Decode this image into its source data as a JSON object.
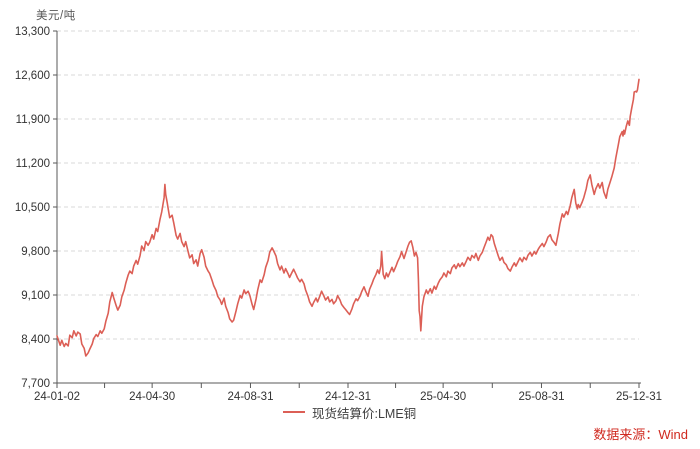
{
  "chart": {
    "unit_label": "美元/吨",
    "legend_label": "现货结算价:LME铜",
    "source_text": "数据来源：Wind"
  },
  "chart_data": {
    "type": "line",
    "title": "",
    "ylabel": "美元/吨",
    "xlabel": "",
    "ylim": [
      7700,
      13300
    ],
    "y_tick_step": 700,
    "y_tick_labels": [
      "7,700",
      "8,400",
      "9,100",
      "9,800",
      "10,500",
      "11,200",
      "11,900",
      "12,600",
      "13,300"
    ],
    "grid": "horizontal-dashed",
    "legend_position": "bottom-center",
    "x_unit": "days since 2024-01-02",
    "x_ticks": [
      {
        "day": 0,
        "label": "24-01-02"
      },
      {
        "day": 119,
        "label": "24-04-30"
      },
      {
        "day": 242,
        "label": "24-08-31"
      },
      {
        "day": 364,
        "label": "24-12-31"
      },
      {
        "day": 483,
        "label": "25-04-30"
      },
      {
        "day": 606,
        "label": "25-08-31"
      },
      {
        "day": 728,
        "label": "25-12-31"
      }
    ],
    "colors": {
      "line": "#dc5f56",
      "axis": "#595959",
      "grid": "#d9d9d9",
      "tick_label": "#333333",
      "source_text": "#d02a20"
    },
    "series": [
      {
        "name": "现货结算价:LME铜",
        "color": "#dc5f56",
        "points": [
          [
            0,
            8450
          ],
          [
            4,
            8300
          ],
          [
            6,
            8380
          ],
          [
            9,
            8280
          ],
          [
            11,
            8330
          ],
          [
            14,
            8290
          ],
          [
            16,
            8460
          ],
          [
            19,
            8420
          ],
          [
            21,
            8530
          ],
          [
            24,
            8450
          ],
          [
            26,
            8510
          ],
          [
            29,
            8480
          ],
          [
            31,
            8320
          ],
          [
            34,
            8250
          ],
          [
            36,
            8130
          ],
          [
            39,
            8180
          ],
          [
            41,
            8240
          ],
          [
            44,
            8320
          ],
          [
            46,
            8410
          ],
          [
            49,
            8470
          ],
          [
            51,
            8440
          ],
          [
            54,
            8530
          ],
          [
            56,
            8490
          ],
          [
            59,
            8560
          ],
          [
            61,
            8680
          ],
          [
            64,
            8810
          ],
          [
            66,
            8990
          ],
          [
            69,
            9140
          ],
          [
            71,
            9050
          ],
          [
            74,
            8930
          ],
          [
            76,
            8860
          ],
          [
            79,
            8940
          ],
          [
            81,
            9070
          ],
          [
            84,
            9180
          ],
          [
            86,
            9290
          ],
          [
            89,
            9420
          ],
          [
            91,
            9480
          ],
          [
            94,
            9440
          ],
          [
            96,
            9560
          ],
          [
            99,
            9650
          ],
          [
            101,
            9590
          ],
          [
            104,
            9730
          ],
          [
            106,
            9880
          ],
          [
            109,
            9810
          ],
          [
            111,
            9950
          ],
          [
            114,
            9890
          ],
          [
            116,
            9940
          ],
          [
            119,
            10060
          ],
          [
            121,
            9990
          ],
          [
            124,
            10160
          ],
          [
            126,
            10110
          ],
          [
            129,
            10310
          ],
          [
            131,
            10420
          ],
          [
            134,
            10650
          ],
          [
            135,
            10860
          ],
          [
            136,
            10700
          ],
          [
            138,
            10560
          ],
          [
            139,
            10480
          ],
          [
            141,
            10330
          ],
          [
            144,
            10370
          ],
          [
            146,
            10250
          ],
          [
            149,
            10050
          ],
          [
            151,
            9990
          ],
          [
            154,
            10080
          ],
          [
            156,
            9950
          ],
          [
            159,
            9870
          ],
          [
            161,
            9950
          ],
          [
            164,
            9790
          ],
          [
            166,
            9690
          ],
          [
            169,
            9740
          ],
          [
            171,
            9600
          ],
          [
            174,
            9660
          ],
          [
            176,
            9560
          ],
          [
            179,
            9760
          ],
          [
            181,
            9820
          ],
          [
            184,
            9700
          ],
          [
            186,
            9560
          ],
          [
            189,
            9480
          ],
          [
            191,
            9440
          ],
          [
            194,
            9330
          ],
          [
            196,
            9250
          ],
          [
            199,
            9170
          ],
          [
            201,
            9080
          ],
          [
            204,
            9020
          ],
          [
            206,
            8950
          ],
          [
            209,
            9050
          ],
          [
            211,
            8920
          ],
          [
            214,
            8820
          ],
          [
            216,
            8720
          ],
          [
            219,
            8670
          ],
          [
            221,
            8700
          ],
          [
            224,
            8850
          ],
          [
            226,
            8960
          ],
          [
            229,
            9090
          ],
          [
            231,
            9050
          ],
          [
            234,
            9180
          ],
          [
            236,
            9120
          ],
          [
            239,
            9160
          ],
          [
            241,
            9100
          ],
          [
            244,
            8950
          ],
          [
            246,
            8870
          ],
          [
            249,
            9040
          ],
          [
            251,
            9180
          ],
          [
            254,
            9340
          ],
          [
            256,
            9300
          ],
          [
            259,
            9420
          ],
          [
            261,
            9540
          ],
          [
            264,
            9650
          ],
          [
            266,
            9780
          ],
          [
            269,
            9850
          ],
          [
            271,
            9800
          ],
          [
            274,
            9720
          ],
          [
            276,
            9600
          ],
          [
            279,
            9500
          ],
          [
            281,
            9560
          ],
          [
            284,
            9450
          ],
          [
            286,
            9520
          ],
          [
            289,
            9440
          ],
          [
            291,
            9380
          ],
          [
            294,
            9460
          ],
          [
            296,
            9510
          ],
          [
            299,
            9430
          ],
          [
            301,
            9370
          ],
          [
            304,
            9310
          ],
          [
            306,
            9350
          ],
          [
            309,
            9280
          ],
          [
            311,
            9180
          ],
          [
            314,
            9080
          ],
          [
            316,
            8990
          ],
          [
            319,
            8920
          ],
          [
            321,
            8980
          ],
          [
            324,
            9050
          ],
          [
            326,
            8990
          ],
          [
            329,
            9090
          ],
          [
            331,
            9160
          ],
          [
            334,
            9080
          ],
          [
            336,
            9020
          ],
          [
            339,
            9070
          ],
          [
            341,
            8990
          ],
          [
            344,
            9030
          ],
          [
            346,
            8960
          ],
          [
            349,
            9010
          ],
          [
            351,
            9090
          ],
          [
            354,
            9020
          ],
          [
            356,
            8950
          ],
          [
            359,
            8900
          ],
          [
            361,
            8870
          ],
          [
            364,
            8820
          ],
          [
            366,
            8790
          ],
          [
            369,
            8880
          ],
          [
            371,
            8960
          ],
          [
            374,
            9040
          ],
          [
            376,
            9010
          ],
          [
            379,
            9080
          ],
          [
            381,
            9150
          ],
          [
            384,
            9230
          ],
          [
            386,
            9160
          ],
          [
            389,
            9080
          ],
          [
            391,
            9190
          ],
          [
            394,
            9280
          ],
          [
            396,
            9350
          ],
          [
            399,
            9430
          ],
          [
            401,
            9500
          ],
          [
            403,
            9440
          ],
          [
            405,
            9560
          ],
          [
            406,
            9790
          ],
          [
            408,
            9430
          ],
          [
            410,
            9360
          ],
          [
            412,
            9450
          ],
          [
            414,
            9390
          ],
          [
            417,
            9480
          ],
          [
            419,
            9540
          ],
          [
            421,
            9470
          ],
          [
            424,
            9560
          ],
          [
            426,
            9630
          ],
          [
            429,
            9710
          ],
          [
            431,
            9790
          ],
          [
            434,
            9680
          ],
          [
            436,
            9760
          ],
          [
            439,
            9880
          ],
          [
            441,
            9940
          ],
          [
            443,
            9960
          ],
          [
            445,
            9860
          ],
          [
            447,
            9720
          ],
          [
            449,
            9780
          ],
          [
            451,
            9690
          ],
          [
            452,
            9350
          ],
          [
            453,
            8850
          ],
          [
            454,
            8760
          ],
          [
            455,
            8530
          ],
          [
            457,
            8920
          ],
          [
            459,
            9070
          ],
          [
            462,
            9180
          ],
          [
            464,
            9120
          ],
          [
            467,
            9200
          ],
          [
            469,
            9130
          ],
          [
            472,
            9240
          ],
          [
            474,
            9190
          ],
          [
            477,
            9290
          ],
          [
            479,
            9340
          ],
          [
            482,
            9390
          ],
          [
            484,
            9450
          ],
          [
            487,
            9390
          ],
          [
            489,
            9480
          ],
          [
            492,
            9440
          ],
          [
            494,
            9530
          ],
          [
            497,
            9580
          ],
          [
            499,
            9520
          ],
          [
            502,
            9600
          ],
          [
            504,
            9550
          ],
          [
            507,
            9610
          ],
          [
            509,
            9560
          ],
          [
            512,
            9640
          ],
          [
            514,
            9700
          ],
          [
            517,
            9650
          ],
          [
            519,
            9730
          ],
          [
            522,
            9690
          ],
          [
            524,
            9760
          ],
          [
            527,
            9650
          ],
          [
            529,
            9720
          ],
          [
            532,
            9780
          ],
          [
            534,
            9850
          ],
          [
            537,
            9950
          ],
          [
            539,
            10020
          ],
          [
            541,
            9970
          ],
          [
            543,
            10060
          ],
          [
            545,
            10030
          ],
          [
            547,
            9920
          ],
          [
            549,
            9840
          ],
          [
            552,
            9720
          ],
          [
            554,
            9650
          ],
          [
            557,
            9700
          ],
          [
            559,
            9620
          ],
          [
            562,
            9580
          ],
          [
            564,
            9520
          ],
          [
            567,
            9480
          ],
          [
            569,
            9540
          ],
          [
            572,
            9610
          ],
          [
            574,
            9560
          ],
          [
            577,
            9640
          ],
          [
            579,
            9690
          ],
          [
            582,
            9630
          ],
          [
            584,
            9700
          ],
          [
            587,
            9660
          ],
          [
            589,
            9730
          ],
          [
            592,
            9780
          ],
          [
            594,
            9720
          ],
          [
            597,
            9790
          ],
          [
            599,
            9750
          ],
          [
            602,
            9830
          ],
          [
            604,
            9870
          ],
          [
            607,
            9920
          ],
          [
            609,
            9870
          ],
          [
            612,
            9950
          ],
          [
            614,
            10020
          ],
          [
            617,
            10060
          ],
          [
            619,
            9980
          ],
          [
            622,
            9930
          ],
          [
            624,
            9890
          ],
          [
            627,
            10080
          ],
          [
            629,
            10230
          ],
          [
            632,
            10390
          ],
          [
            634,
            10340
          ],
          [
            637,
            10430
          ],
          [
            639,
            10380
          ],
          [
            642,
            10520
          ],
          [
            644,
            10650
          ],
          [
            647,
            10780
          ],
          [
            649,
            10560
          ],
          [
            651,
            10470
          ],
          [
            652,
            10540
          ],
          [
            654,
            10490
          ],
          [
            657,
            10580
          ],
          [
            659,
            10650
          ],
          [
            662,
            10790
          ],
          [
            664,
            10920
          ],
          [
            667,
            11010
          ],
          [
            669,
            10860
          ],
          [
            672,
            10700
          ],
          [
            674,
            10790
          ],
          [
            677,
            10870
          ],
          [
            679,
            10800
          ],
          [
            682,
            10890
          ],
          [
            684,
            10740
          ],
          [
            687,
            10640
          ],
          [
            689,
            10780
          ],
          [
            692,
            10900
          ],
          [
            694,
            10980
          ],
          [
            697,
            11120
          ],
          [
            699,
            11280
          ],
          [
            702,
            11480
          ],
          [
            704,
            11620
          ],
          [
            707,
            11700
          ],
          [
            708,
            11630
          ],
          [
            709,
            11720
          ],
          [
            710,
            11660
          ],
          [
            712,
            11780
          ],
          [
            714,
            11870
          ],
          [
            716,
            11800
          ],
          [
            717,
            11940
          ],
          [
            719,
            12080
          ],
          [
            721,
            12210
          ],
          [
            722,
            12330
          ],
          [
            724,
            12340
          ],
          [
            725,
            12330
          ],
          [
            726,
            12360
          ],
          [
            728,
            12530
          ]
        ]
      }
    ]
  }
}
